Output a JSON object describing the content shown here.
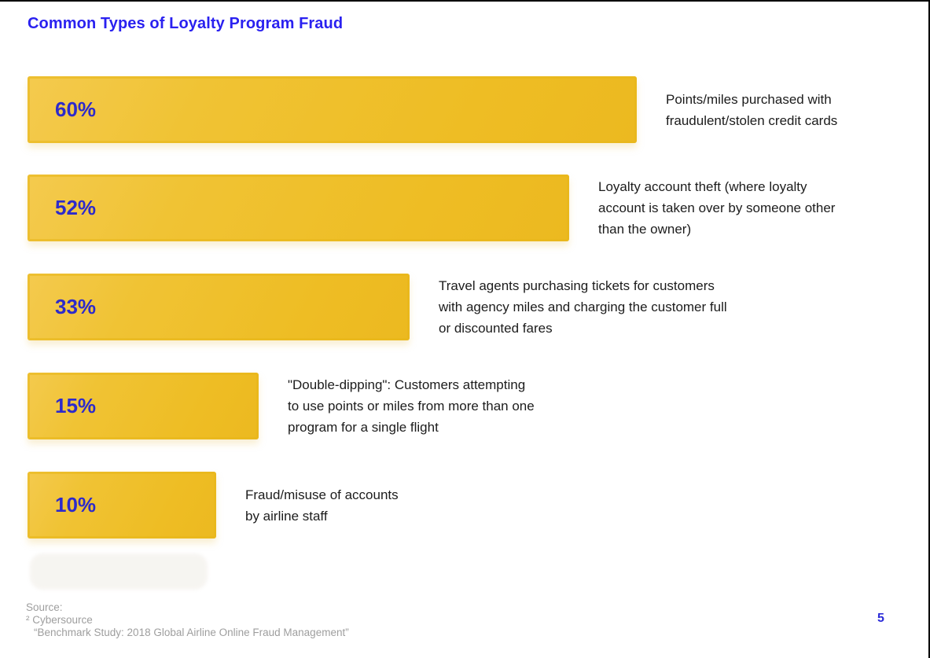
{
  "page": {
    "title": "Common Types of Loyalty Program Fraud",
    "page_number": "5"
  },
  "chart_data": {
    "type": "bar",
    "orientation": "horizontal",
    "title": "Common Types of Loyalty Program Fraud",
    "categories": [
      "Points/miles purchased with fraudulent/stolen credit cards",
      "Loyalty account theft (where loyalty account is taken over by someone other than the owner)",
      "Travel agents purchasing tickets for customers with agency miles and charging the customer full or discounted fares",
      "\"Double-dipping\": Customers attempting to use points or miles from more than one program for a single flight",
      "Fraud/misuse of accounts by airline staff"
    ],
    "values": [
      60,
      52,
      33,
      15,
      10
    ],
    "value_labels": [
      "60%",
      "52%",
      "33%",
      "15%",
      "10%"
    ],
    "unit": "%",
    "bar_color": "#EFC02B",
    "value_label_color": "#2D2ACB",
    "title_color": "#2A21F0",
    "caption_color": "#1C1C1C",
    "legend": "none",
    "grid": false,
    "axis_labels": "none"
  },
  "bars": [
    {
      "pct": "60%",
      "caption": "Points/miles purchased with\nfraudulent/stolen credit cards"
    },
    {
      "pct": "52%",
      "caption": "Loyalty account theft (where loyalty\naccount is taken over by someone other\nthan the owner)"
    },
    {
      "pct": "33%",
      "caption": "Travel agents purchasing tickets for customers\nwith agency miles and charging the customer full\nor discounted fares"
    },
    {
      "pct": "15%",
      "caption": "\"Double-dipping\": Customers attempting\nto use points or miles from more than one\nprogram for a single flight"
    },
    {
      "pct": "10%",
      "caption": "Fraud/misuse of accounts\nby airline staff"
    }
  ],
  "footer": {
    "source_label": "Source:",
    "source_name": "² Cybersource",
    "source_study": "“Benchmark Study: 2018 Global Airline Online Fraud Management”"
  }
}
